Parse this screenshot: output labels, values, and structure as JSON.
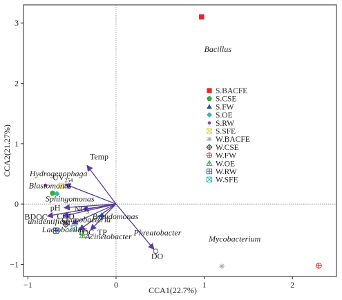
{
  "chart_data": {
    "type": "scatter",
    "xlabel": "CCA1(22.7%)",
    "ylabel": "CCA2(21.27%)",
    "xlim": [
      -1.05,
      2.5
    ],
    "ylim": [
      -1.2,
      3.3
    ],
    "xticks": [
      -1,
      0,
      1,
      2
    ],
    "yticks": [
      -1,
      0,
      1,
      2,
      3
    ],
    "zero_lines": true,
    "legend_position": "right-middle",
    "samples": [
      {
        "name": "S.BACFE",
        "marker": "square-filled",
        "color": "#e8262a",
        "points": [
          [
            0.97,
            3.1
          ]
        ]
      },
      {
        "name": "S.CSE",
        "marker": "circle-filled",
        "color": "#3aa845",
        "points": [
          [
            -0.72,
            0.18
          ]
        ]
      },
      {
        "name": "S.FW",
        "marker": "triangle-filled",
        "color": "#2c4f9e",
        "points": [
          [
            -0.16,
            -0.18
          ]
        ]
      },
      {
        "name": "S.OE",
        "marker": "diamond-filled",
        "color": "#35b8b0",
        "points": [
          [
            -0.67,
            0.17
          ]
        ]
      },
      {
        "name": "S.RW",
        "marker": "circle-small",
        "color": "#8e3fa0",
        "points": [
          [
            -0.8,
            0.31
          ]
        ]
      },
      {
        "name": "S.SFE",
        "marker": "x-square",
        "color": "#e6d64a",
        "points": [
          [
            -0.62,
            0.3
          ]
        ]
      },
      {
        "name": "W.BACFE",
        "marker": "asterisk",
        "color": "#aaaaaa",
        "points": [
          [
            1.2,
            -1.03
          ]
        ]
      },
      {
        "name": "W.CSE",
        "marker": "circle-cross",
        "color": "#444444",
        "points": [
          [
            -0.57,
            -0.34
          ]
        ]
      },
      {
        "name": "W.FW",
        "marker": "circle-plus",
        "color": "#e8262a",
        "points": [
          [
            2.3,
            -1.02
          ]
        ]
      },
      {
        "name": "W.OE",
        "marker": "triangle-outline",
        "color": "#3aa845",
        "points": [
          [
            -0.38,
            -0.52
          ]
        ]
      },
      {
        "name": "W.RW",
        "marker": "square-plus",
        "color": "#2c4f9e",
        "points": [
          [
            -0.68,
            -0.44
          ]
        ]
      },
      {
        "name": "W.SFE",
        "marker": "square-x",
        "color": "#35b8b0",
        "points": [
          [
            -0.48,
            -0.4
          ]
        ]
      }
    ],
    "environmental_vectors": [
      {
        "label": "Temp",
        "x": -0.33,
        "y": 0.64
      },
      {
        "label": "UV254",
        "x": -0.58,
        "y": 0.33
      },
      {
        "label": "pH",
        "x": -0.59,
        "y": -0.06
      },
      {
        "label": "BDOC",
        "x": -0.78,
        "y": -0.2
      },
      {
        "label": "COD",
        "x": -0.6,
        "y": -0.2
      },
      {
        "label": "NO3",
        "x": -0.38,
        "y": -0.09
      },
      {
        "label": "Nt",
        "x": -0.5,
        "y": -0.33
      },
      {
        "label": "TOC",
        "x": -0.42,
        "y": -0.43
      },
      {
        "label": "TP",
        "x": -0.29,
        "y": -0.43
      },
      {
        "label": "DO",
        "x": 0.43,
        "y": -0.75
      }
    ],
    "species": [
      {
        "label": "Bacillus",
        "x": 1.0,
        "y": 2.52
      },
      {
        "label": "Hydrogenophaga",
        "x": -0.98,
        "y": 0.46
      },
      {
        "label": "Blastomonas",
        "x": -0.99,
        "y": 0.26
      },
      {
        "label": "Sphingomonas",
        "x": -0.8,
        "y": 0.04
      },
      {
        "label": "unidentified",
        "x": -1.0,
        "y": -0.33
      },
      {
        "label": "Cyanobacteria",
        "x": -0.62,
        "y": -0.3
      },
      {
        "label": "Pseudomonas",
        "x": -0.27,
        "y": -0.25
      },
      {
        "label": "Lactobacillus",
        "x": -0.84,
        "y": -0.47
      },
      {
        "label": "Acinetobacter",
        "x": -0.35,
        "y": -0.58
      },
      {
        "label": "Phreatobacter",
        "x": 0.2,
        "y": -0.52
      },
      {
        "label": "Mycobacterium",
        "x": 1.05,
        "y": -0.62
      }
    ]
  }
}
